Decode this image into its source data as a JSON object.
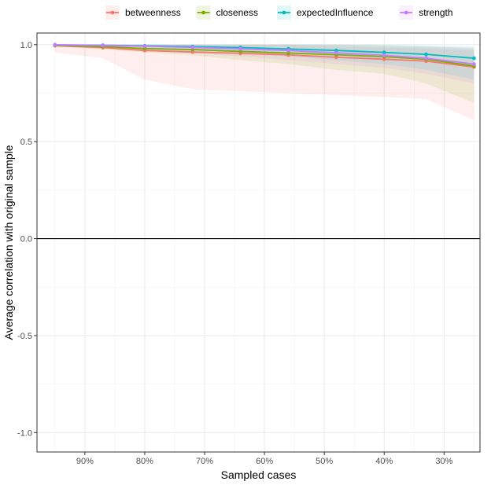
{
  "chart_data": {
    "type": "line",
    "xlabel": "Sampled cases",
    "ylabel": "Average correlation with original sample",
    "x_reversed": true,
    "xlim": [
      24,
      98
    ],
    "ylim": [
      -1.1,
      1.06
    ],
    "x_ticks": [
      {
        "value": 90,
        "label": "90%"
      },
      {
        "value": 80,
        "label": "80%"
      },
      {
        "value": 70,
        "label": "70%"
      },
      {
        "value": 60,
        "label": "60%"
      },
      {
        "value": 50,
        "label": "50%"
      },
      {
        "value": 40,
        "label": "40%"
      },
      {
        "value": 30,
        "label": "30%"
      }
    ],
    "y_ticks": [
      {
        "value": 1.0,
        "label": "1.0"
      },
      {
        "value": 0.5,
        "label": "0.5"
      },
      {
        "value": 0.0,
        "label": "0.0"
      },
      {
        "value": -0.5,
        "label": "-0.5"
      },
      {
        "value": -1.0,
        "label": "-1.0"
      }
    ],
    "reference_line_y": 0,
    "grid": true,
    "legend_position": "top",
    "x": [
      95,
      87,
      80,
      72,
      64,
      56,
      48,
      40,
      33,
      25
    ],
    "series": [
      {
        "name": "betweenness",
        "color": "#F8766D",
        "values": [
          0.995,
          0.985,
          0.97,
          0.962,
          0.955,
          0.947,
          0.935,
          0.925,
          0.915,
          0.885
        ],
        "lower": [
          0.96,
          0.93,
          0.82,
          0.77,
          0.76,
          0.75,
          0.74,
          0.73,
          0.72,
          0.61
        ],
        "upper": [
          1.0,
          1.0,
          1.0,
          1.0,
          1.0,
          1.0,
          0.99,
          0.985,
          0.98,
          0.97
        ]
      },
      {
        "name": "closeness",
        "color": "#7CAE00",
        "values": [
          0.997,
          0.99,
          0.98,
          0.975,
          0.965,
          0.957,
          0.948,
          0.938,
          0.925,
          0.89
        ],
        "lower": [
          0.99,
          0.975,
          0.96,
          0.945,
          0.92,
          0.9,
          0.87,
          0.85,
          0.8,
          0.7
        ],
        "upper": [
          1.0,
          1.0,
          1.0,
          1.0,
          1.0,
          1.0,
          1.0,
          0.995,
          0.99,
          0.98
        ]
      },
      {
        "name": "expectedInfluence",
        "color": "#00BFC4",
        "values": [
          0.999,
          0.997,
          0.994,
          0.99,
          0.985,
          0.978,
          0.97,
          0.96,
          0.95,
          0.93
        ],
        "lower": [
          0.99,
          0.985,
          0.975,
          0.965,
          0.955,
          0.94,
          0.92,
          0.9,
          0.87,
          0.82
        ],
        "upper": [
          1.0,
          1.0,
          1.0,
          1.0,
          1.0,
          1.0,
          1.0,
          1.0,
          0.995,
          0.99
        ]
      },
      {
        "name": "strength",
        "color": "#C77CFF",
        "values": [
          0.999,
          0.996,
          0.992,
          0.986,
          0.978,
          0.97,
          0.958,
          0.945,
          0.93,
          0.9
        ],
        "lower": [
          0.99,
          0.98,
          0.97,
          0.955,
          0.94,
          0.92,
          0.9,
          0.88,
          0.85,
          0.8
        ],
        "upper": [
          1.0,
          1.0,
          1.0,
          1.0,
          1.0,
          1.0,
          1.0,
          0.995,
          0.99,
          0.985
        ]
      }
    ]
  }
}
